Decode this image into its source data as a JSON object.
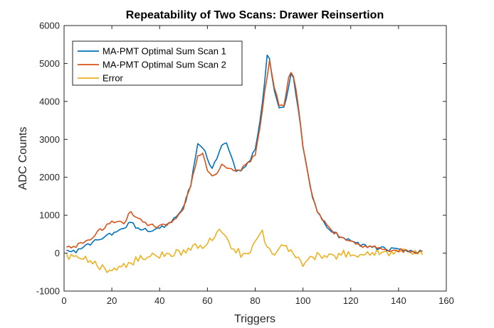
{
  "chart_data": {
    "type": "line",
    "title": "Repeatability of Two Scans: Drawer Reinsertion",
    "xlabel": "Triggers",
    "ylabel": "ADC Counts",
    "xlim": [
      0,
      160
    ],
    "ylim": [
      -1000,
      6000
    ],
    "xticks": [
      0,
      20,
      40,
      60,
      80,
      100,
      120,
      140,
      160
    ],
    "yticks": [
      -1000,
      0,
      1000,
      2000,
      3000,
      4000,
      5000,
      6000
    ],
    "grid": false,
    "legend_position": "top-left",
    "series": [
      {
        "name": "MA-PMT Optimal Sum Scan 1",
        "color": "#0072BD",
        "x": [
          1,
          5,
          10,
          15,
          20,
          25,
          28,
          30,
          35,
          40,
          45,
          50,
          53,
          56,
          58,
          60,
          62,
          64,
          66,
          68,
          70,
          72,
          74,
          76,
          78,
          80,
          82,
          84,
          85,
          86,
          88,
          90,
          92,
          94,
          95,
          96,
          98,
          100,
          102,
          104,
          106,
          108,
          110,
          115,
          120,
          125,
          130,
          135,
          140,
          145,
          150
        ],
        "y": [
          100,
          50,
          200,
          400,
          500,
          650,
          850,
          700,
          600,
          650,
          800,
          1200,
          1800,
          2850,
          2800,
          2500,
          2250,
          2500,
          2880,
          2900,
          2600,
          2200,
          2150,
          2300,
          2450,
          2750,
          3500,
          4500,
          5200,
          5100,
          4300,
          3800,
          3800,
          4400,
          4700,
          4600,
          3800,
          2800,
          2100,
          1500,
          1100,
          900,
          700,
          450,
          350,
          200,
          150,
          100,
          80,
          50,
          30
        ],
        "noise": 50
      },
      {
        "name": "MA-PMT Optimal Sum Scan 2",
        "color": "#D95319",
        "x": [
          1,
          5,
          10,
          15,
          20,
          25,
          28,
          30,
          35,
          40,
          45,
          50,
          53,
          56,
          58,
          60,
          62,
          64,
          66,
          68,
          70,
          72,
          74,
          76,
          78,
          80,
          82,
          84,
          86,
          88,
          90,
          92,
          94,
          95,
          96,
          98,
          100,
          102,
          104,
          106,
          108,
          110,
          115,
          120,
          125,
          130,
          135,
          140,
          145,
          150
        ],
        "y": [
          150,
          200,
          300,
          600,
          850,
          800,
          1100,
          950,
          750,
          700,
          800,
          1200,
          1800,
          2550,
          2600,
          2200,
          2000,
          2100,
          2350,
          2250,
          2200,
          2150,
          2200,
          2300,
          2400,
          2600,
          3300,
          4300,
          5050,
          4400,
          3900,
          3900,
          4600,
          4800,
          4700,
          3900,
          2800,
          2100,
          1500,
          1100,
          900,
          700,
          450,
          350,
          200,
          150,
          100,
          80,
          50,
          30
        ],
        "noise": 50
      },
      {
        "name": "Error",
        "color": "#EDB120",
        "x": [
          1,
          5,
          10,
          15,
          20,
          25,
          30,
          35,
          40,
          45,
          50,
          55,
          60,
          63,
          65,
          67,
          70,
          75,
          80,
          83,
          85,
          88,
          90,
          95,
          100,
          105,
          110,
          115,
          120,
          125,
          130,
          135,
          140,
          145,
          150
        ],
        "y": [
          -100,
          -150,
          -200,
          -350,
          -450,
          -300,
          -200,
          -100,
          -50,
          0,
          50,
          150,
          250,
          500,
          600,
          450,
          150,
          -50,
          250,
          500,
          200,
          -50,
          150,
          100,
          -250,
          -100,
          -50,
          -50,
          0,
          -50,
          50,
          0,
          50,
          0,
          0
        ],
        "noise": 110
      }
    ]
  }
}
